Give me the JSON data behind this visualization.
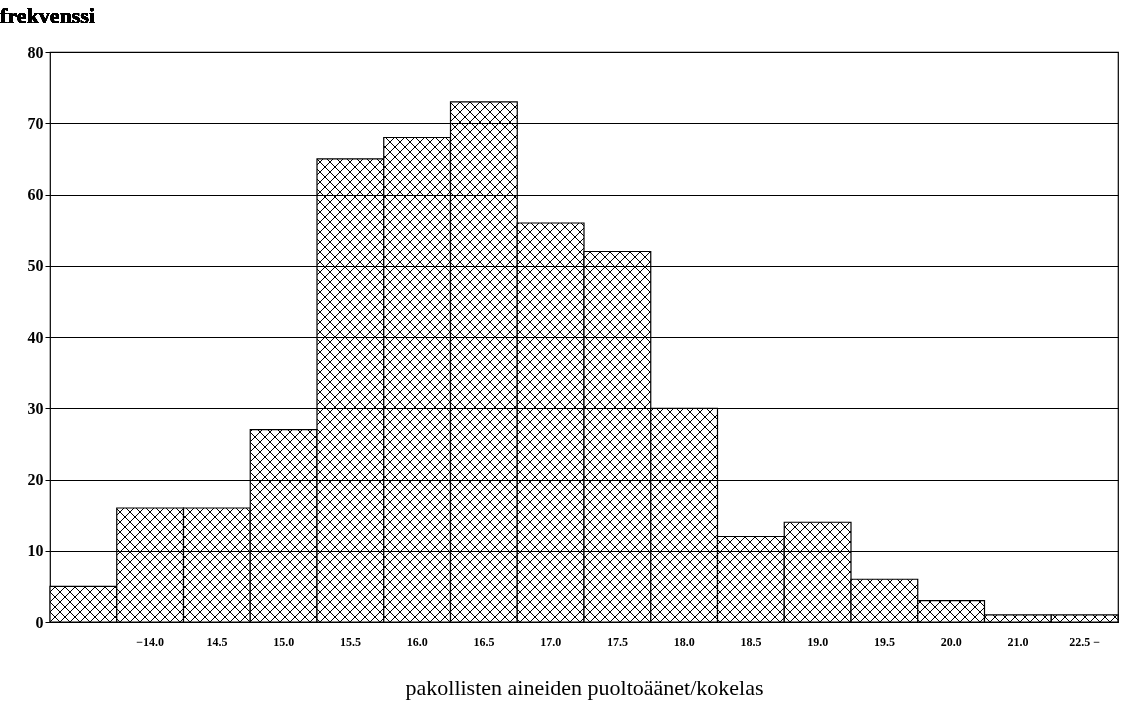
{
  "chart_data": {
    "type": "bar",
    "ylabel": "frekvenssi",
    "xlabel": "pakollisten aineiden puoltoäänet/kokelas",
    "categories": [
      null,
      "−14.0",
      "14.5",
      "15.0",
      "15.5",
      "16.0",
      "16.5",
      "17.0",
      "17.5",
      "18.0",
      "18.5",
      "19.0",
      "19.5",
      "20.0",
      "21.0",
      "22.5 −"
    ],
    "values": [
      5,
      16,
      16,
      27,
      65,
      68,
      73,
      56,
      52,
      30,
      12,
      14,
      6,
      3,
      1,
      1
    ],
    "color": "#000000",
    "ylim": [
      0,
      80
    ],
    "yticks": [
      0,
      10,
      20,
      30,
      40,
      50,
      60,
      70,
      80
    ],
    "grid": "y"
  }
}
